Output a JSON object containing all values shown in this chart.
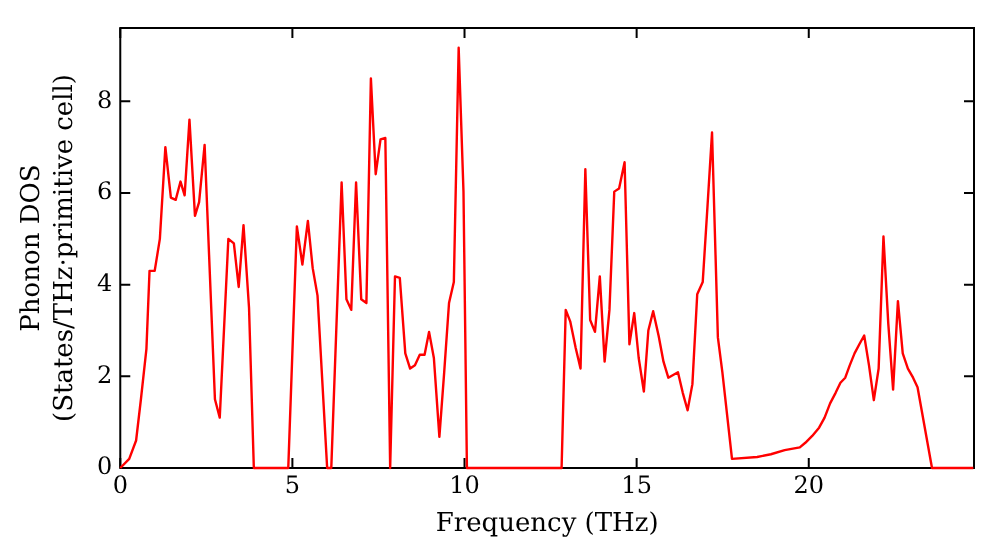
{
  "chart_data": {
    "type": "line",
    "xlabel": "Frequency (THz)",
    "ylabel": "Phonon DOS\n(States/THz·primitive cell)",
    "x": [
      0,
      0.26,
      0.46,
      0.6,
      0.76,
      0.85,
      1.0,
      1.15,
      1.31,
      1.47,
      1.61,
      1.75,
      1.87,
      2.01,
      2.17,
      2.29,
      2.45,
      2.75,
      2.89,
      3.14,
      3.3,
      3.44,
      3.58,
      3.74,
      3.88,
      4.88,
      5.13,
      5.29,
      5.45,
      5.59,
      5.73,
      6.01,
      6.13,
      6.43,
      6.57,
      6.71,
      6.85,
      7.0,
      7.15,
      7.28,
      7.42,
      7.56,
      7.7,
      7.84,
      7.98,
      8.12,
      8.28,
      8.42,
      8.56,
      8.7,
      8.84,
      8.97,
      9.11,
      9.27,
      9.41,
      9.55,
      9.69,
      9.83,
      9.97,
      10.07,
      12.82,
      12.94,
      13.07,
      13.23,
      13.37,
      13.51,
      13.65,
      13.79,
      13.93,
      14.07,
      14.21,
      14.35,
      14.49,
      14.65,
      14.79,
      14.93,
      15.06,
      15.21,
      15.34,
      15.48,
      15.64,
      15.78,
      15.92,
      16.2,
      16.34,
      16.48,
      16.62,
      16.76,
      16.92,
      17.06,
      17.19,
      17.36,
      17.49,
      17.77,
      18.5,
      18.9,
      19.3,
      19.74,
      19.9,
      20.1,
      20.3,
      20.46,
      20.62,
      20.78,
      20.92,
      21.06,
      21.19,
      21.33,
      21.47,
      21.61,
      21.75,
      21.89,
      22.03,
      22.17,
      22.31,
      22.45,
      22.59,
      22.73,
      22.88,
      23.03,
      23.16,
      23.58,
      24.78
    ],
    "series": [
      {
        "color": "#ff0000",
        "values": [
          0,
          0.2,
          0.6,
          1.5,
          2.6,
          4.3,
          4.3,
          5.0,
          7.0,
          5.9,
          5.85,
          6.25,
          5.95,
          7.6,
          5.5,
          5.8,
          7.05,
          1.5,
          1.1,
          5.0,
          4.9,
          3.95,
          5.3,
          3.5,
          0,
          0,
          5.27,
          4.44,
          5.39,
          4.36,
          3.76,
          0,
          0,
          6.23,
          3.68,
          3.45,
          6.23,
          3.68,
          3.6,
          8.5,
          6.41,
          7.17,
          7.2,
          0,
          4.18,
          4.15,
          2.5,
          2.17,
          2.24,
          2.47,
          2.47,
          2.97,
          2.4,
          0.68,
          2.09,
          3.6,
          4.06,
          9.17,
          6.03,
          0,
          0,
          3.45,
          3.2,
          2.62,
          2.17,
          6.52,
          3.23,
          2.97,
          4.18,
          2.32,
          3.45,
          6.03,
          6.1,
          6.67,
          2.7,
          3.38,
          2.4,
          1.67,
          3.0,
          3.42,
          2.88,
          2.32,
          1.97,
          2.09,
          1.64,
          1.26,
          1.83,
          3.79,
          4.06,
          5.73,
          7.32,
          2.85,
          2.09,
          0.2,
          0.24,
          0.3,
          0.39,
          0.45,
          0.55,
          0.7,
          0.88,
          1.1,
          1.41,
          1.64,
          1.86,
          1.97,
          2.24,
          2.5,
          2.7,
          2.89,
          2.24,
          1.48,
          2.17,
          5.05,
          3.15,
          1.71,
          3.64,
          2.5,
          2.17,
          1.97,
          1.76,
          0,
          0
        ]
      }
    ],
    "xlim": [
      0,
      24.8
    ],
    "ylim": [
      0,
      9.6
    ],
    "xticks": [
      0,
      5,
      10,
      15,
      20
    ],
    "yticks": [
      0,
      2,
      4,
      6,
      8
    ],
    "grid": false,
    "legend": false,
    "marker": "none",
    "line_style": "solid"
  }
}
